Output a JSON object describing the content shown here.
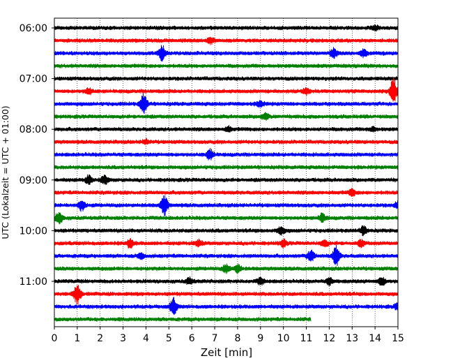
{
  "chart_data": {
    "type": "line",
    "xlabel": "Zeit  [min]",
    "ylabel": "UTC (Lokalzeit = UTC + 01:00)",
    "xlim": [
      0,
      15
    ],
    "x_ticks": [
      0,
      1,
      2,
      3,
      4,
      5,
      6,
      7,
      8,
      9,
      10,
      11,
      12,
      13,
      14,
      15
    ],
    "x_gridlines": "dotted vertical at each minute",
    "y_ticks": [
      "06:00",
      "07:00",
      "08:00",
      "09:00",
      "10:00",
      "11:00"
    ],
    "rows_per_hour": 4,
    "trace_colors": [
      "#000000",
      "#ff0000",
      "#0000ff",
      "#008000"
    ],
    "last_trace_end_min": 11.2,
    "traces": [
      {
        "start": "06:00",
        "events": [
          {
            "t": 14.0,
            "amp": 0.2
          }
        ]
      },
      {
        "start": "06:15",
        "events": [
          {
            "t": 6.8,
            "amp": 0.3
          }
        ]
      },
      {
        "start": "06:30",
        "events": [
          {
            "t": 4.7,
            "amp": 0.7
          },
          {
            "t": 12.2,
            "amp": 0.5
          },
          {
            "t": 13.5,
            "amp": 0.3
          }
        ]
      },
      {
        "start": "06:45",
        "events": []
      },
      {
        "start": "07:00",
        "events": []
      },
      {
        "start": "07:15",
        "events": [
          {
            "t": 1.5,
            "amp": 0.3
          },
          {
            "t": 11.0,
            "amp": 0.3
          },
          {
            "t": 14.8,
            "amp": 1.2
          }
        ]
      },
      {
        "start": "07:30",
        "events": [
          {
            "t": 3.9,
            "amp": 1.0
          },
          {
            "t": 9.0,
            "amp": 0.3
          }
        ]
      },
      {
        "start": "07:45",
        "events": [
          {
            "t": 9.2,
            "amp": 0.3
          }
        ]
      },
      {
        "start": "08:00",
        "events": [
          {
            "t": 7.6,
            "amp": 0.2
          },
          {
            "t": 13.9,
            "amp": 0.2
          }
        ]
      },
      {
        "start": "08:15",
        "events": [
          {
            "t": 4.0,
            "amp": 0.2
          }
        ]
      },
      {
        "start": "08:30",
        "events": [
          {
            "t": 6.8,
            "amp": 0.5
          }
        ]
      },
      {
        "start": "08:45",
        "events": []
      },
      {
        "start": "09:00",
        "events": [
          {
            "t": 1.5,
            "amp": 0.4
          },
          {
            "t": 2.2,
            "amp": 0.4
          }
        ]
      },
      {
        "start": "09:15",
        "events": [
          {
            "t": 13.0,
            "amp": 0.3
          }
        ]
      },
      {
        "start": "09:30",
        "events": [
          {
            "t": 1.2,
            "amp": 0.5
          },
          {
            "t": 4.8,
            "amp": 1.0
          },
          {
            "t": 15.0,
            "amp": 0.3
          }
        ]
      },
      {
        "start": "09:45",
        "events": [
          {
            "t": 0.2,
            "amp": 0.6
          },
          {
            "t": 11.7,
            "amp": 0.4
          }
        ]
      },
      {
        "start": "10:00",
        "events": [
          {
            "t": 9.9,
            "amp": 0.4
          },
          {
            "t": 13.5,
            "amp": 0.4
          }
        ]
      },
      {
        "start": "10:15",
        "events": [
          {
            "t": 3.3,
            "amp": 0.4
          },
          {
            "t": 6.3,
            "amp": 0.3
          },
          {
            "t": 10.0,
            "amp": 0.3
          },
          {
            "t": 11.8,
            "amp": 0.3
          },
          {
            "t": 13.4,
            "amp": 0.3
          }
        ]
      },
      {
        "start": "10:30",
        "events": [
          {
            "t": 3.8,
            "amp": 0.3
          },
          {
            "t": 11.2,
            "amp": 0.6
          },
          {
            "t": 12.3,
            "amp": 1.0
          }
        ]
      },
      {
        "start": "10:45",
        "events": [
          {
            "t": 7.5,
            "amp": 0.4
          },
          {
            "t": 8.0,
            "amp": 0.4
          }
        ]
      },
      {
        "start": "11:00",
        "events": [
          {
            "t": 5.9,
            "amp": 0.3
          },
          {
            "t": 9.0,
            "amp": 0.3
          },
          {
            "t": 12.0,
            "amp": 0.3
          },
          {
            "t": 14.3,
            "amp": 0.4
          }
        ]
      },
      {
        "start": "11:15",
        "events": [
          {
            "t": 1.0,
            "amp": 1.0
          }
        ]
      },
      {
        "start": "11:30",
        "events": [
          {
            "t": 5.2,
            "amp": 0.8
          },
          {
            "t": 15.0,
            "amp": 0.3
          }
        ]
      },
      {
        "start": "11:45",
        "events": []
      }
    ]
  }
}
